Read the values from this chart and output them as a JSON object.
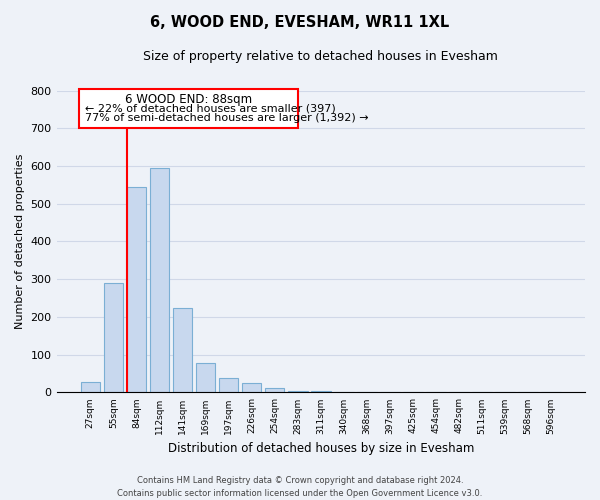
{
  "title": "6, WOOD END, EVESHAM, WR11 1XL",
  "subtitle": "Size of property relative to detached houses in Evesham",
  "xlabel": "Distribution of detached houses by size in Evesham",
  "ylabel": "Number of detached properties",
  "categories": [
    "27sqm",
    "55sqm",
    "84sqm",
    "112sqm",
    "141sqm",
    "169sqm",
    "197sqm",
    "226sqm",
    "254sqm",
    "283sqm",
    "311sqm",
    "340sqm",
    "368sqm",
    "397sqm",
    "425sqm",
    "454sqm",
    "482sqm",
    "511sqm",
    "539sqm",
    "568sqm",
    "596sqm"
  ],
  "bar_values": [
    28,
    290,
    545,
    595,
    225,
    78,
    37,
    25,
    12,
    5,
    5,
    0,
    0,
    0,
    0,
    0,
    0,
    0,
    0,
    0,
    0
  ],
  "bar_color": "#c8d8ee",
  "bar_edge_color": "#7bafd4",
  "vline_color": "red",
  "vline_x_index": 2,
  "ylim": [
    0,
    800
  ],
  "yticks": [
    0,
    100,
    200,
    300,
    400,
    500,
    600,
    700,
    800
  ],
  "ann_line1": "6 WOOD END: 88sqm",
  "ann_line2": "← 22% of detached houses are smaller (397)",
  "ann_line3": "77% of semi-detached houses are larger (1,392) →",
  "footer_line1": "Contains HM Land Registry data © Crown copyright and database right 2024.",
  "footer_line2": "Contains public sector information licensed under the Open Government Licence v3.0.",
  "grid_color": "#d0d8e8",
  "background_color": "#eef2f8"
}
